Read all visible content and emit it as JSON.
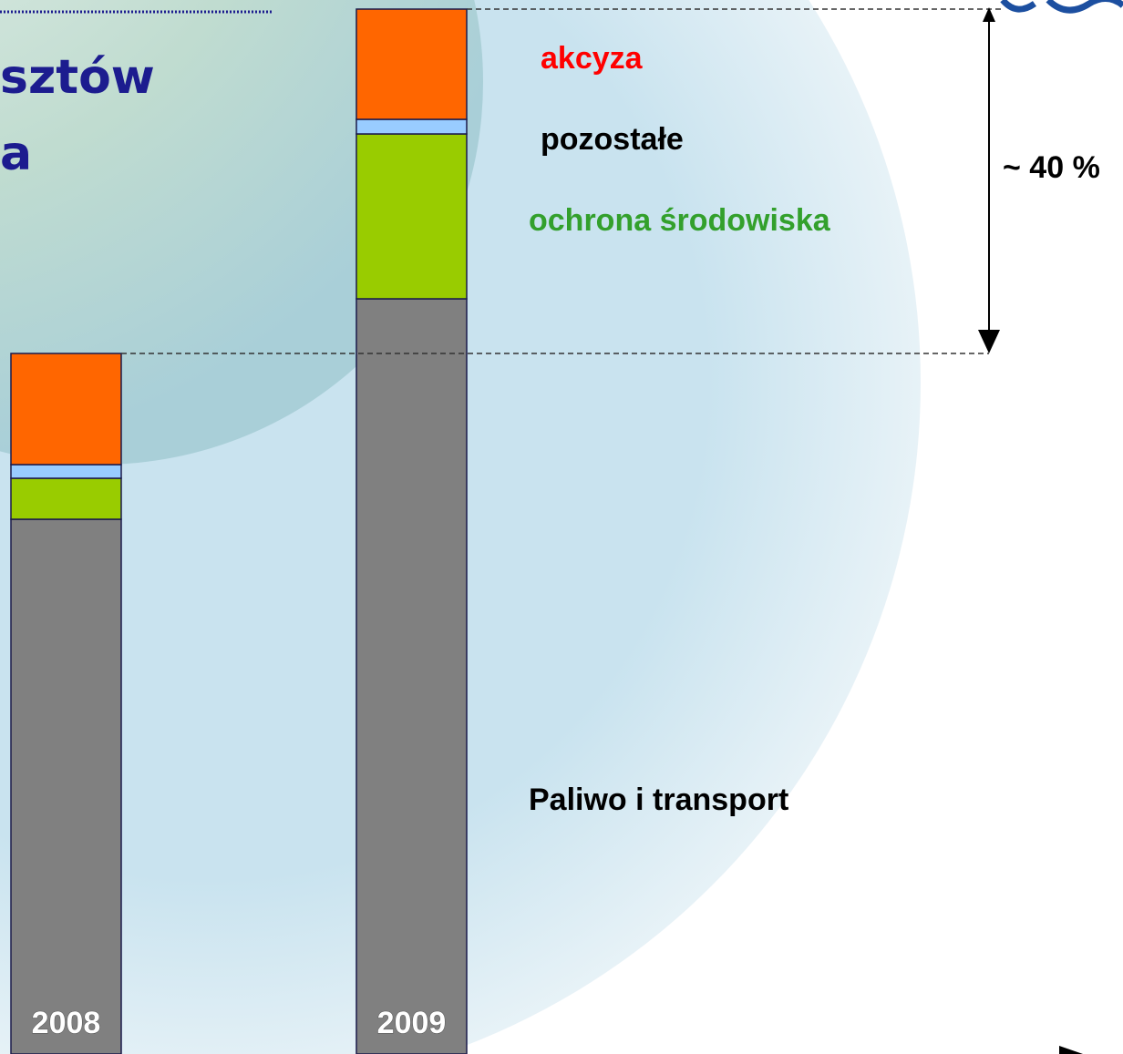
{
  "chart_data": {
    "type": "stacked-bar",
    "title_lines": [
      "sztów",
      "a"
    ],
    "categories": [
      "2008",
      "2009"
    ],
    "ylim": [
      0,
      1147
    ],
    "series": [
      {
        "name": "Paliwo i transport",
        "color": "#808080",
        "label_color": "#000000",
        "values": [
          587,
          829
        ]
      },
      {
        "name": "ochrona środowiska",
        "color": "#99cc00",
        "label_color": "#33a02c",
        "values": [
          45,
          181
        ]
      },
      {
        "name": "pozostałe",
        "color": "#99ccff",
        "label_color": "#000000",
        "values": [
          15,
          16
        ]
      },
      {
        "name": "akcyza",
        "color": "#ff6600",
        "label_color": "#ff0000",
        "values": [
          122,
          121
        ]
      }
    ],
    "annotation": "~ 40 %"
  }
}
